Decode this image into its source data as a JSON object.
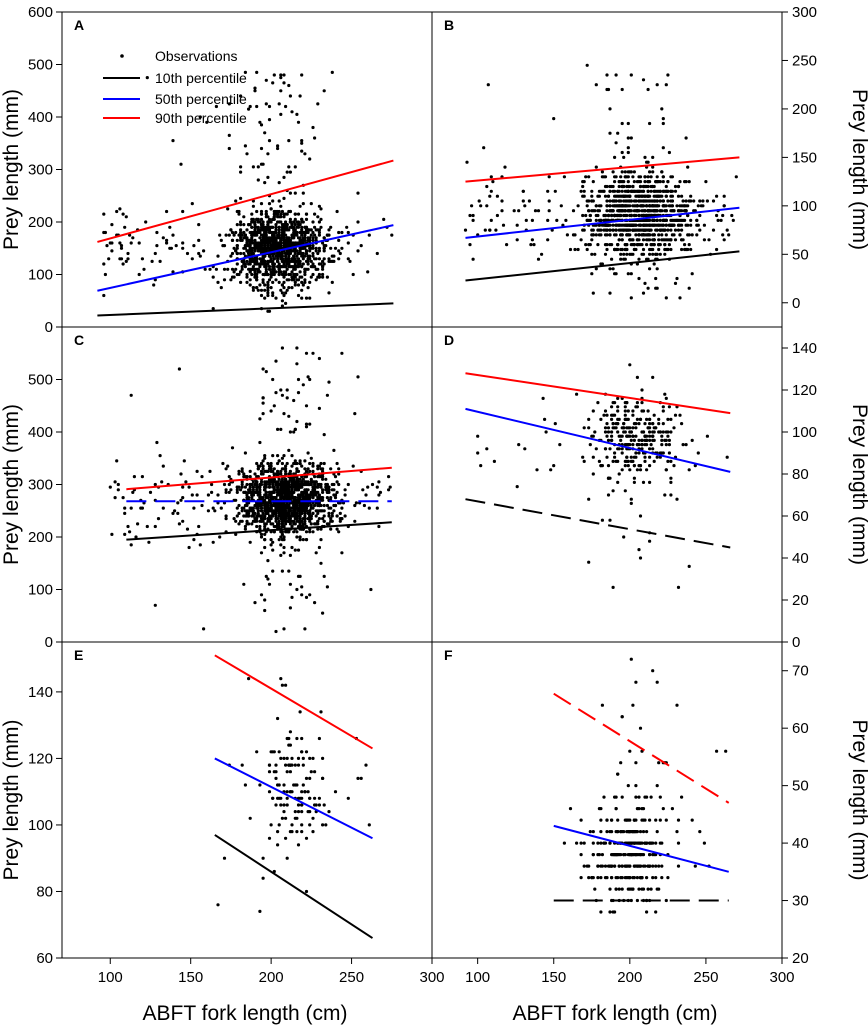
{
  "x_axis_label": "ABFT fork length (cm)",
  "y_axis_label": "Prey length (mm)",
  "x_ticks": [
    100,
    150,
    200,
    250,
    300
  ],
  "legend": [
    {
      "label": "Observations",
      "type": "dot",
      "color": "#000000"
    },
    {
      "label": "10th percentile",
      "type": "line",
      "color": "#000000"
    },
    {
      "label": "50th percentile",
      "type": "line",
      "color": "#0000ff"
    },
    {
      "label": "90th percentile",
      "type": "line",
      "color": "#ff0000"
    }
  ],
  "chart_data": [
    {
      "panel": "A",
      "type": "scatter",
      "yaxis_side": "left",
      "xlim": [
        70,
        300
      ],
      "ylim": [
        0,
        600
      ],
      "y_ticks": [
        0,
        100,
        200,
        300,
        400,
        500,
        600
      ],
      "y_tick_labels": [
        "0",
        "100",
        "200",
        "300",
        "400",
        "500",
        "600"
      ],
      "cloud": {
        "x_range": [
          95,
          275
        ],
        "x_center": 205,
        "x_spread": 30,
        "y_min": 25,
        "y_max": 495,
        "y_center": 150,
        "y_spread": 75,
        "count": 1300,
        "grid": 5
      },
      "lines": [
        {
          "pct": "10th",
          "color": "#000000",
          "dash": false,
          "x": [
            92,
            276
          ],
          "y": [
            22,
            45
          ]
        },
        {
          "pct": "50th",
          "color": "#0000ff",
          "dash": false,
          "x": [
            92,
            276
          ],
          "y": [
            69,
            194
          ]
        },
        {
          "pct": "90th",
          "color": "#ff0000",
          "dash": false,
          "x": [
            92,
            276
          ],
          "y": [
            162,
            317
          ]
        }
      ]
    },
    {
      "panel": "B",
      "type": "scatter",
      "yaxis_side": "right",
      "xlim": [
        70,
        300
      ],
      "ylim": [
        -25,
        300
      ],
      "y_ticks": [
        0,
        50,
        100,
        150,
        200,
        250,
        300
      ],
      "y_tick_labels": [
        "0",
        "50",
        "100",
        "150",
        "200",
        "250",
        "300"
      ],
      "cloud": {
        "x_range": [
          92,
          270
        ],
        "x_center": 205,
        "x_spread": 35,
        "y_min": 5,
        "y_max": 245,
        "y_center": 90,
        "y_spread": 42,
        "count": 1200,
        "grid": 5
      },
      "lines": [
        {
          "pct": "10th",
          "color": "#000000",
          "dash": false,
          "x": [
            92,
            272
          ],
          "y": [
            23,
            53
          ]
        },
        {
          "pct": "50th",
          "color": "#0000ff",
          "dash": false,
          "x": [
            92,
            272
          ],
          "y": [
            67,
            98
          ]
        },
        {
          "pct": "90th",
          "color": "#ff0000",
          "dash": false,
          "x": [
            92,
            272
          ],
          "y": [
            125,
            150
          ]
        }
      ]
    },
    {
      "panel": "C",
      "type": "scatter",
      "yaxis_side": "left",
      "xlim": [
        70,
        300
      ],
      "ylim": [
        0,
        600
      ],
      "y_ticks": [
        0,
        100,
        200,
        300,
        400,
        500
      ],
      "y_tick_labels": [
        "0",
        "100",
        "200",
        "300",
        "400",
        "500"
      ],
      "cloud": {
        "x_range": [
          100,
          275
        ],
        "x_center": 210,
        "x_spread": 30,
        "y_min": 15,
        "y_max": 565,
        "y_center": 270,
        "y_spread": 70,
        "count": 1500,
        "grid": 5
      },
      "lines": [
        {
          "pct": "10th",
          "color": "#000000",
          "dash": false,
          "x": [
            110,
            275
          ],
          "y": [
            195,
            228
          ]
        },
        {
          "pct": "50th",
          "color": "#0000ff",
          "dash": true,
          "x": [
            110,
            275
          ],
          "y": [
            268,
            268
          ]
        },
        {
          "pct": "90th",
          "color": "#ff0000",
          "dash": false,
          "x": [
            110,
            275
          ],
          "y": [
            291,
            332
          ]
        }
      ]
    },
    {
      "panel": "D",
      "type": "scatter",
      "yaxis_side": "right",
      "xlim": [
        70,
        300
      ],
      "ylim": [
        0,
        150
      ],
      "y_ticks": [
        0,
        20,
        40,
        60,
        80,
        100,
        120,
        140
      ],
      "y_tick_labels": [
        "0",
        "20",
        "40",
        "60",
        "80",
        "100",
        "120",
        "140"
      ],
      "cloud": {
        "x_range": [
          92,
          265
        ],
        "x_center": 205,
        "x_spread": 30,
        "y_min": 25,
        "y_max": 138,
        "y_center": 95,
        "y_spread": 20,
        "count": 330,
        "grid": 2
      },
      "lines": [
        {
          "pct": "10th",
          "color": "#000000",
          "dash": true,
          "x": [
            92,
            266
          ],
          "y": [
            68,
            45
          ]
        },
        {
          "pct": "50th",
          "color": "#0000ff",
          "dash": false,
          "x": [
            92,
            266
          ],
          "y": [
            111,
            81
          ]
        },
        {
          "pct": "90th",
          "color": "#ff0000",
          "dash": false,
          "x": [
            92,
            266
          ],
          "y": [
            128,
            109
          ]
        }
      ]
    },
    {
      "panel": "E",
      "type": "scatter",
      "yaxis_side": "left",
      "xlim": [
        70,
        300
      ],
      "ylim": [
        60,
        155
      ],
      "y_ticks": [
        60,
        80,
        100,
        120,
        140
      ],
      "y_tick_labels": [
        "60",
        "80",
        "100",
        "120",
        "140"
      ],
      "cloud": {
        "x_range": [
          165,
          262
        ],
        "x_center": 212,
        "x_spread": 20,
        "y_min": 70,
        "y_max": 148,
        "y_center": 110,
        "y_spread": 18,
        "count": 150,
        "grid": 2
      },
      "lines": [
        {
          "pct": "10th",
          "color": "#000000",
          "dash": false,
          "x": [
            165,
            263
          ],
          "y": [
            97,
            66
          ]
        },
        {
          "pct": "50th",
          "color": "#0000ff",
          "dash": false,
          "x": [
            165,
            263
          ],
          "y": [
            120,
            96
          ]
        },
        {
          "pct": "90th",
          "color": "#ff0000",
          "dash": false,
          "x": [
            165,
            263
          ],
          "y": [
            151,
            123
          ]
        }
      ]
    },
    {
      "panel": "F",
      "type": "scatter",
      "yaxis_side": "right",
      "xlim": [
        70,
        300
      ],
      "ylim": [
        20,
        75
      ],
      "y_ticks": [
        20,
        30,
        40,
        50,
        60,
        70
      ],
      "y_tick_labels": [
        "20",
        "30",
        "40",
        "50",
        "60",
        "70"
      ],
      "cloud": {
        "x_range": [
          150,
          265
        ],
        "x_center": 200,
        "x_spread": 25,
        "y_min": 25,
        "y_max": 73,
        "y_center": 38,
        "y_spread": 9,
        "count": 330,
        "grid": 2
      },
      "lines": [
        {
          "pct": "10th",
          "color": "#000000",
          "dash": true,
          "x": [
            150,
            265
          ],
          "y": [
            30,
            30
          ]
        },
        {
          "pct": "50th",
          "color": "#0000ff",
          "dash": false,
          "x": [
            150,
            265
          ],
          "y": [
            43,
            35
          ]
        },
        {
          "pct": "90th",
          "color": "#ff0000",
          "dash": true,
          "x": [
            150,
            265
          ],
          "y": [
            66,
            47
          ]
        }
      ]
    }
  ]
}
